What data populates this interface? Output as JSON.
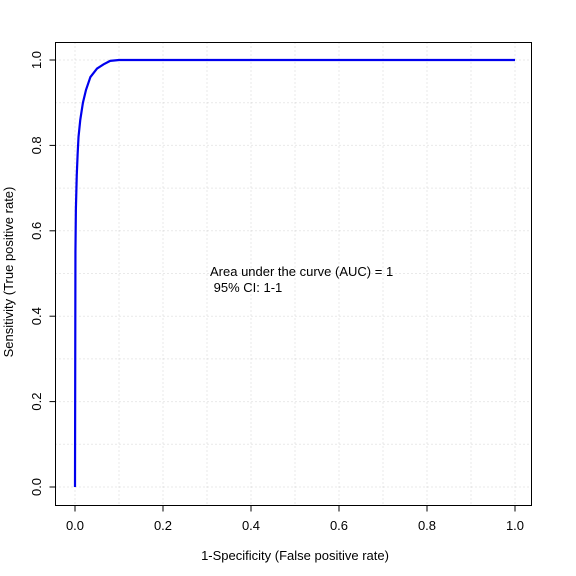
{
  "chart_data": {
    "type": "line",
    "title": "",
    "xlabel": "1-Specificity (False positive rate)",
    "ylabel": "Sensitivity (True positive rate)",
    "xlim": [
      0,
      1
    ],
    "ylim": [
      0,
      1
    ],
    "xticks": [
      "0.0",
      "0.2",
      "0.4",
      "0.6",
      "0.8",
      "1.0"
    ],
    "yticks": [
      "0.0",
      "0.2",
      "0.4",
      "0.6",
      "0.8",
      "1.0"
    ],
    "grid": true,
    "line_color": "#0000ee",
    "series": [
      {
        "x": [
          0,
          0.001,
          0.002,
          0.004,
          0.006,
          0.008,
          0.012,
          0.018,
          0.025,
          0.035,
          0.05,
          0.065,
          0.08,
          0.1,
          0.15,
          0.3,
          0.5,
          0.7,
          0.9,
          1.0
        ],
        "y": [
          0,
          0.55,
          0.65,
          0.73,
          0.78,
          0.82,
          0.86,
          0.9,
          0.93,
          0.96,
          0.98,
          0.99,
          0.998,
          1.0,
          1.0,
          1.0,
          1.0,
          1.0,
          1.0,
          1.0
        ]
      }
    ],
    "annotations": [
      "Area under the curve (AUC) = 1",
      " 95% CI: 1-1"
    ]
  }
}
